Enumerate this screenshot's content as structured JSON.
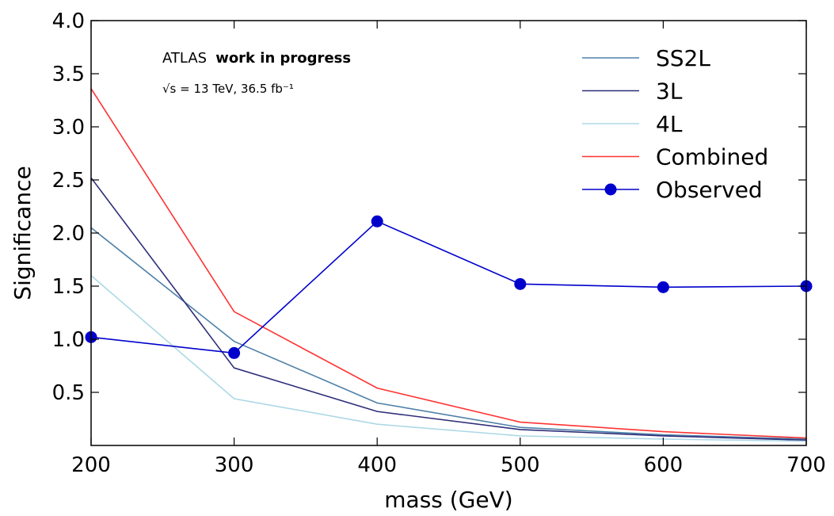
{
  "chart_data": {
    "type": "line",
    "xlabel": "mass (GeV)",
    "ylabel": "Significance",
    "xlim": [
      200,
      700
    ],
    "ylim": [
      0,
      4.0
    ],
    "x_ticks": [
      200,
      300,
      400,
      500,
      600,
      700
    ],
    "y_ticks": [
      0.5,
      1.0,
      1.5,
      2.0,
      2.5,
      3.0,
      3.5,
      4.0
    ],
    "x_tick_labels": [
      "200",
      "300",
      "400",
      "500",
      "600",
      "700"
    ],
    "y_tick_labels": [
      "0.5",
      "1.0",
      "1.5",
      "2.0",
      "2.5",
      "3.0",
      "3.5",
      "4.0"
    ],
    "x": [
      200,
      300,
      400,
      500,
      600,
      700
    ],
    "grid": false,
    "legend_position": "top-right",
    "annotation": {
      "experiment": "ATLAS",
      "status": "work in progress",
      "energy_lumi": "√s = 13 TeV, 36.5 fb⁻¹"
    },
    "series": [
      {
        "name": "SS2L",
        "values": [
          2.05,
          0.98,
          0.4,
          0.17,
          0.1,
          0.06
        ],
        "color": "#4f81a8",
        "marker": false
      },
      {
        "name": "3L",
        "values": [
          2.52,
          0.73,
          0.32,
          0.15,
          0.09,
          0.05
        ],
        "color": "#2e2e7a",
        "marker": false
      },
      {
        "name": "4L",
        "values": [
          1.6,
          0.44,
          0.2,
          0.09,
          0.06,
          0.04
        ],
        "color": "#add8e6",
        "marker": false
      },
      {
        "name": "Combined",
        "values": [
          3.36,
          1.26,
          0.54,
          0.22,
          0.13,
          0.07
        ],
        "color": "#ff3333",
        "marker": false
      },
      {
        "name": "Observed",
        "values": [
          1.02,
          0.87,
          2.11,
          1.52,
          1.49,
          1.5
        ],
        "color": "#0000cc",
        "marker": true
      }
    ]
  }
}
